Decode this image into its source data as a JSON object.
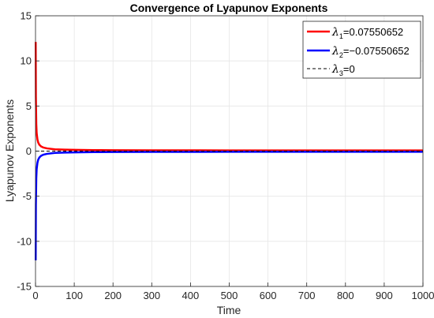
{
  "chart_data": {
    "type": "line",
    "title": "Convergence of Lyapunov Exponents",
    "xlabel": "Time",
    "ylabel": "Lyapunov Exponents",
    "xlim": [
      0,
      1000
    ],
    "ylim": [
      -15,
      15
    ],
    "x_ticks": [
      "0",
      "100",
      "200",
      "300",
      "400",
      "500",
      "600",
      "700",
      "800",
      "900",
      "1000"
    ],
    "y_ticks": [
      "-15",
      "-10",
      "-5",
      "0",
      "5",
      "10",
      "15"
    ],
    "grid": true,
    "legend_position": "top-right",
    "series": [
      {
        "name": "λ1=0.07550652",
        "symbol": "λ",
        "subscript": "1",
        "value_text": "=0.07550652",
        "color": "#ff0000",
        "style": "solid",
        "x": [
          0.5,
          1,
          2,
          3,
          5,
          7,
          10,
          15,
          20,
          30,
          50,
          75,
          100,
          150,
          200,
          300,
          500,
          700,
          1000
        ],
        "values": [
          12.1,
          6.0,
          3.0,
          2.0,
          1.3,
          0.95,
          0.7,
          0.5,
          0.4,
          0.3,
          0.2,
          0.16,
          0.14,
          0.11,
          0.1,
          0.09,
          0.08,
          0.077,
          0.0755
        ]
      },
      {
        "name": "λ2=-0.07550652",
        "symbol": "λ",
        "subscript": "2",
        "value_text": "=−0.07550652",
        "color": "#0000ff",
        "style": "solid",
        "x": [
          0.5,
          1,
          2,
          3,
          5,
          7,
          10,
          15,
          20,
          30,
          50,
          75,
          100,
          150,
          200,
          300,
          500,
          700,
          1000
        ],
        "values": [
          -12.1,
          -6.0,
          -3.0,
          -2.0,
          -1.3,
          -0.95,
          -0.7,
          -0.5,
          -0.4,
          -0.3,
          -0.2,
          -0.16,
          -0.14,
          -0.11,
          -0.1,
          -0.09,
          -0.08,
          -0.077,
          -0.0755
        ]
      },
      {
        "name": "λ3=0",
        "symbol": "λ",
        "subscript": "3",
        "value_text": "=0",
        "color": "#000000",
        "style": "dashed",
        "x": [
          0,
          1000
        ],
        "values": [
          0,
          0
        ]
      }
    ]
  }
}
